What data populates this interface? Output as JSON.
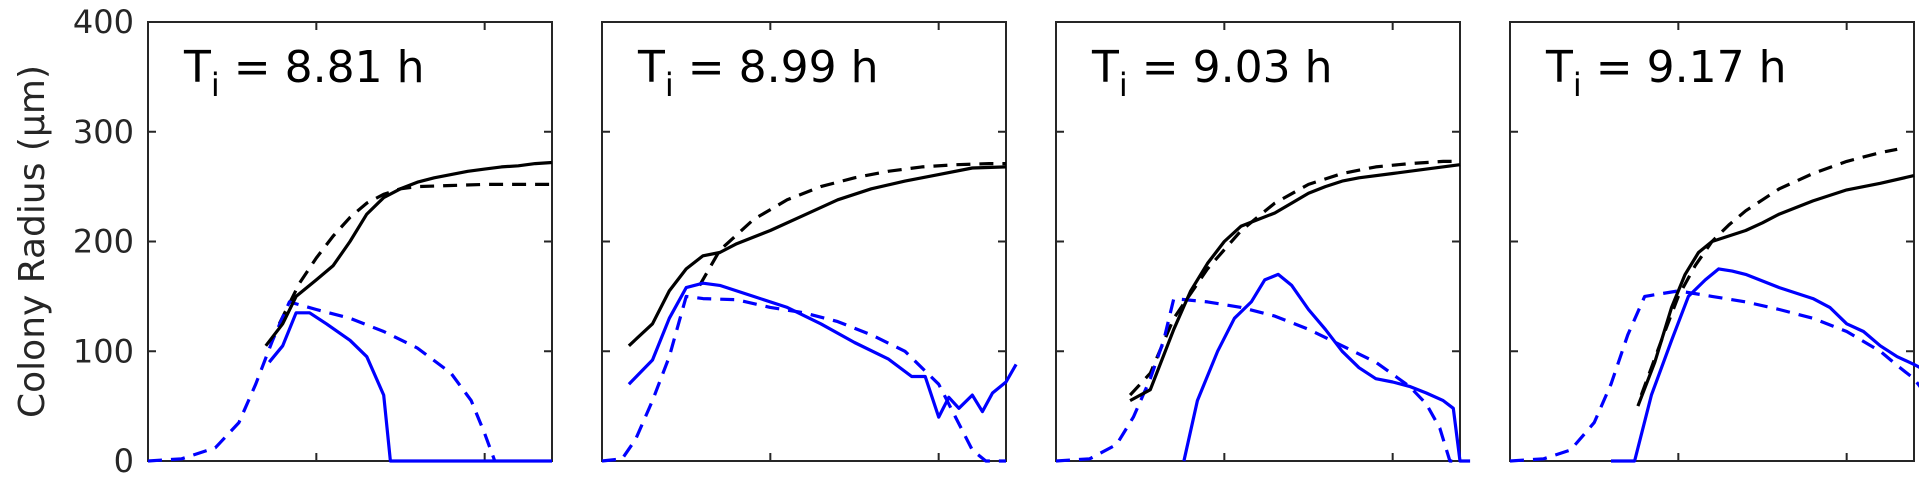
{
  "chart_data": {
    "type": "line",
    "ylabel": "Colony Radius (μm)",
    "ylim": [
      0,
      400
    ],
    "yticks": [
      0,
      100,
      200,
      300,
      400
    ],
    "xlim": [
      0,
      12
    ],
    "xticks": [
      0,
      5,
      10
    ],
    "xtick_labels_visible": false,
    "grid": false,
    "series_styles": [
      {
        "key": "black_solid",
        "color": "#000000",
        "dash": "solid"
      },
      {
        "key": "black_dashed",
        "color": "#000000",
        "dash": "dashed"
      },
      {
        "key": "blue_solid",
        "color": "#0000ff",
        "dash": "solid"
      },
      {
        "key": "blue_dashed",
        "color": "#0000ff",
        "dash": "dashed"
      }
    ],
    "panels": [
      {
        "title_main": "T",
        "title_sub": "i",
        "title_rest": " = 8.81 h",
        "series": {
          "black_solid": [
            [
              3.5,
              105
            ],
            [
              4.0,
              125
            ],
            [
              4.4,
              150
            ],
            [
              5.0,
              165
            ],
            [
              5.5,
              178
            ],
            [
              6.0,
              200
            ],
            [
              6.5,
              225
            ],
            [
              7.0,
              240
            ],
            [
              7.5,
              248
            ],
            [
              8.0,
              254
            ],
            [
              8.5,
              258
            ],
            [
              9.0,
              261
            ],
            [
              9.5,
              264
            ],
            [
              10.0,
              266
            ],
            [
              10.5,
              268
            ],
            [
              11.0,
              269
            ],
            [
              11.5,
              271
            ],
            [
              12.0,
              272
            ]
          ],
          "black_dashed": [
            [
              3.9,
              125
            ],
            [
              4.5,
              162
            ],
            [
              5.0,
              185
            ],
            [
              5.5,
              205
            ],
            [
              6.0,
              222
            ],
            [
              6.5,
              235
            ],
            [
              7.0,
              243
            ],
            [
              7.5,
              248
            ],
            [
              8.0,
              250
            ],
            [
              9.0,
              251
            ],
            [
              10.0,
              252
            ],
            [
              12.0,
              252
            ]
          ],
          "blue_solid": [
            [
              3.6,
              90
            ],
            [
              4.0,
              105
            ],
            [
              4.4,
              135
            ],
            [
              4.8,
              135
            ],
            [
              5.3,
              125
            ],
            [
              6.0,
              110
            ],
            [
              6.5,
              95
            ],
            [
              7.0,
              60
            ],
            [
              7.2,
              0
            ],
            [
              8.0,
              0
            ],
            [
              10.0,
              0
            ],
            [
              12.0,
              0
            ]
          ],
          "blue_dashed": [
            [
              0,
              0
            ],
            [
              1.0,
              2
            ],
            [
              2.0,
              12
            ],
            [
              2.7,
              35
            ],
            [
              3.2,
              70
            ],
            [
              3.7,
              110
            ],
            [
              4.2,
              145
            ],
            [
              5.0,
              138
            ],
            [
              6.0,
              130
            ],
            [
              7.0,
              118
            ],
            [
              8.0,
              103
            ],
            [
              9.0,
              80
            ],
            [
              9.6,
              55
            ],
            [
              10.0,
              25
            ],
            [
              10.3,
              0
            ]
          ]
        }
      },
      {
        "title_main": "T",
        "title_sub": "i",
        "title_rest": " = 8.99 h",
        "series": {
          "black_solid": [
            [
              0.8,
              105
            ],
            [
              1.5,
              125
            ],
            [
              2.0,
              155
            ],
            [
              2.5,
              175
            ],
            [
              3.0,
              187
            ],
            [
              3.5,
              190
            ],
            [
              4.0,
              198
            ],
            [
              5.0,
              210
            ],
            [
              6.0,
              224
            ],
            [
              7.0,
              238
            ],
            [
              8.0,
              248
            ],
            [
              9.0,
              255
            ],
            [
              10.0,
              261
            ],
            [
              11.0,
              267
            ],
            [
              12.0,
              268
            ]
          ],
          "black_dashed": [
            [
              2.9,
              160
            ],
            [
              3.5,
              192
            ],
            [
              4.5,
              220
            ],
            [
              5.5,
              238
            ],
            [
              6.5,
              250
            ],
            [
              7.5,
              258
            ],
            [
              8.5,
              264
            ],
            [
              9.5,
              268
            ],
            [
              10.5,
              270
            ],
            [
              11.5,
              271
            ],
            [
              12.0,
              271
            ]
          ],
          "blue_solid": [
            [
              0.8,
              70
            ],
            [
              1.5,
              92
            ],
            [
              2.0,
              130
            ],
            [
              2.5,
              158
            ],
            [
              3.0,
              162
            ],
            [
              3.5,
              160
            ],
            [
              4.5,
              150
            ],
            [
              5.5,
              140
            ],
            [
              6.5,
              125
            ],
            [
              7.5,
              108
            ],
            [
              8.5,
              93
            ],
            [
              9.2,
              77
            ],
            [
              9.6,
              77
            ],
            [
              10.0,
              40
            ],
            [
              10.3,
              58
            ],
            [
              10.6,
              48
            ],
            [
              11.0,
              60
            ],
            [
              11.3,
              45
            ],
            [
              11.6,
              62
            ],
            [
              12.0,
              72
            ],
            [
              12.3,
              88
            ]
          ],
          "blue_dashed": [
            [
              0,
              0
            ],
            [
              0.6,
              2
            ],
            [
              1.0,
              20
            ],
            [
              1.5,
              55
            ],
            [
              2.0,
              95
            ],
            [
              2.5,
              150
            ],
            [
              3.0,
              148
            ],
            [
              4.0,
              147
            ],
            [
              5.0,
              140
            ],
            [
              6.0,
              135
            ],
            [
              7.0,
              127
            ],
            [
              8.0,
              115
            ],
            [
              9.0,
              100
            ],
            [
              10.0,
              70
            ],
            [
              10.5,
              40
            ],
            [
              11.0,
              10
            ],
            [
              11.4,
              0
            ],
            [
              12.0,
              0
            ]
          ]
        }
      },
      {
        "title_main": "T",
        "title_sub": "i",
        "title_rest": " = 9.03 h",
        "series": {
          "black_solid": [
            [
              2.2,
              55
            ],
            [
              2.8,
              65
            ],
            [
              3.5,
              120
            ],
            [
              4.0,
              155
            ],
            [
              4.5,
              180
            ],
            [
              5.0,
              200
            ],
            [
              5.5,
              214
            ],
            [
              6.0,
              220
            ],
            [
              6.5,
              226
            ],
            [
              7.0,
              235
            ],
            [
              7.5,
              244
            ],
            [
              8.0,
              250
            ],
            [
              8.5,
              255
            ],
            [
              9.0,
              258
            ],
            [
              10.0,
              262
            ],
            [
              11.0,
              266
            ],
            [
              12.0,
              270
            ]
          ],
          "black_dashed": [
            [
              2.2,
              60
            ],
            [
              2.8,
              80
            ],
            [
              3.5,
              130
            ],
            [
              4.5,
              175
            ],
            [
              5.5,
              210
            ],
            [
              6.5,
              235
            ],
            [
              7.5,
              252
            ],
            [
              8.5,
              262
            ],
            [
              9.5,
              268
            ],
            [
              10.5,
              271
            ],
            [
              11.5,
              273
            ],
            [
              12.0,
              273
            ]
          ],
          "blue_solid": [
            [
              3.8,
              0
            ],
            [
              4.2,
              55
            ],
            [
              4.8,
              100
            ],
            [
              5.3,
              130
            ],
            [
              5.8,
              145
            ],
            [
              6.2,
              165
            ],
            [
              6.6,
              170
            ],
            [
              7.0,
              160
            ],
            [
              7.5,
              138
            ],
            [
              8.0,
              120
            ],
            [
              8.5,
              100
            ],
            [
              9.0,
              85
            ],
            [
              9.5,
              75
            ],
            [
              10.0,
              72
            ],
            [
              10.5,
              68
            ],
            [
              11.0,
              62
            ],
            [
              11.5,
              55
            ],
            [
              11.8,
              48
            ],
            [
              12.0,
              0
            ],
            [
              12.3,
              0
            ]
          ],
          "blue_dashed": [
            [
              0,
              0
            ],
            [
              1.0,
              2
            ],
            [
              1.8,
              15
            ],
            [
              2.3,
              40
            ],
            [
              2.8,
              75
            ],
            [
              3.2,
              110
            ],
            [
              3.5,
              148
            ],
            [
              4.5,
              145
            ],
            [
              5.5,
              140
            ],
            [
              6.5,
              132
            ],
            [
              7.5,
              120
            ],
            [
              8.5,
              105
            ],
            [
              9.5,
              90
            ],
            [
              10.5,
              68
            ],
            [
              11.0,
              52
            ],
            [
              11.4,
              30
            ],
            [
              11.7,
              0
            ],
            [
              12.0,
              0
            ]
          ]
        }
      },
      {
        "title_main": "T",
        "title_sub": "i",
        "title_rest": " = 9.17 h",
        "series": {
          "black_solid": [
            [
              3.8,
              50
            ],
            [
              4.3,
              90
            ],
            [
              4.8,
              140
            ],
            [
              5.2,
              170
            ],
            [
              5.6,
              190
            ],
            [
              6.0,
              200
            ],
            [
              6.5,
              205
            ],
            [
              7.0,
              210
            ],
            [
              7.5,
              217
            ],
            [
              8.0,
              225
            ],
            [
              9.0,
              237
            ],
            [
              10.0,
              247
            ],
            [
              11.0,
              253
            ],
            [
              12.0,
              260
            ]
          ],
          "black_dashed": [
            [
              3.9,
              60
            ],
            [
              4.5,
              110
            ],
            [
              5.0,
              150
            ],
            [
              5.5,
              178
            ],
            [
              6.0,
              200
            ],
            [
              6.5,
              215
            ],
            [
              7.0,
              228
            ],
            [
              7.5,
              238
            ],
            [
              8.0,
              248
            ],
            [
              9.0,
              262
            ],
            [
              10.0,
              273
            ],
            [
              11.0,
              281
            ],
            [
              11.5,
              284
            ]
          ],
          "blue_solid": [
            [
              3.0,
              0
            ],
            [
              3.7,
              0
            ],
            [
              4.2,
              60
            ],
            [
              4.8,
              110
            ],
            [
              5.3,
              150
            ],
            [
              5.8,
              165
            ],
            [
              6.2,
              175
            ],
            [
              6.6,
              173
            ],
            [
              7.0,
              170
            ],
            [
              8.0,
              158
            ],
            [
              9.0,
              148
            ],
            [
              9.5,
              140
            ],
            [
              10.0,
              125
            ],
            [
              10.5,
              118
            ],
            [
              11.0,
              105
            ],
            [
              11.5,
              95
            ],
            [
              12.0,
              88
            ],
            [
              12.5,
              80
            ]
          ],
          "blue_dashed": [
            [
              0,
              0
            ],
            [
              1.0,
              2
            ],
            [
              1.8,
              10
            ],
            [
              2.5,
              35
            ],
            [
              3.0,
              70
            ],
            [
              3.5,
              115
            ],
            [
              4.0,
              150
            ],
            [
              5.0,
              155
            ],
            [
              6.0,
              150
            ],
            [
              7.0,
              145
            ],
            [
              8.0,
              138
            ],
            [
              9.0,
              130
            ],
            [
              10.0,
              118
            ],
            [
              11.0,
              100
            ],
            [
              11.5,
              87
            ],
            [
              12.0,
              75
            ],
            [
              12.5,
              55
            ]
          ]
        }
      }
    ]
  }
}
